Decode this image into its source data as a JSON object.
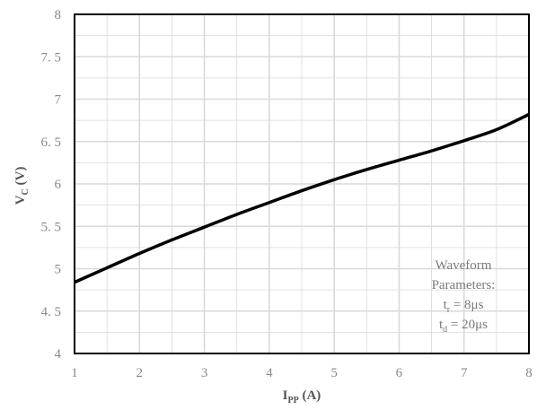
{
  "chart_data": {
    "type": "line",
    "xlabel": {
      "main": "I",
      "sub": "PP",
      "unit": " (A)"
    },
    "ylabel": {
      "main": "V",
      "sub": "C",
      "unit": " (V)"
    },
    "xlim": [
      1,
      8
    ],
    "ylim": [
      4,
      8
    ],
    "x_ticks": [
      "1",
      "2",
      "3",
      "4",
      "5",
      "6",
      "7",
      "8"
    ],
    "y_ticks": [
      "4",
      "4. 5",
      "5",
      "5. 5",
      "6",
      "6. 5",
      "7",
      "7. 5",
      "8"
    ],
    "grid": {
      "major": true,
      "minor": true
    },
    "series": [
      {
        "color": "#000000",
        "x": [
          1,
          1.5,
          2,
          2.5,
          3,
          3.5,
          4,
          4.5,
          5,
          5.5,
          6,
          6.5,
          7,
          7.5,
          8
        ],
        "y": [
          4.84,
          5.01,
          5.18,
          5.34,
          5.49,
          5.64,
          5.78,
          5.92,
          6.05,
          6.17,
          6.28,
          6.39,
          6.51,
          6.64,
          6.82
        ]
      }
    ],
    "annotation": {
      "line1": "Waveform",
      "line2": "Parameters:",
      "tr": {
        "main": "t",
        "sub": "r",
        "rest": " = 8μs"
      },
      "td": {
        "main": "t",
        "sub": "d",
        "rest": " = 20μs"
      }
    },
    "colors": {
      "grid": "#d9d9d9",
      "frame": "#000000",
      "line": "#000000",
      "text": "#8a8a8a"
    }
  }
}
